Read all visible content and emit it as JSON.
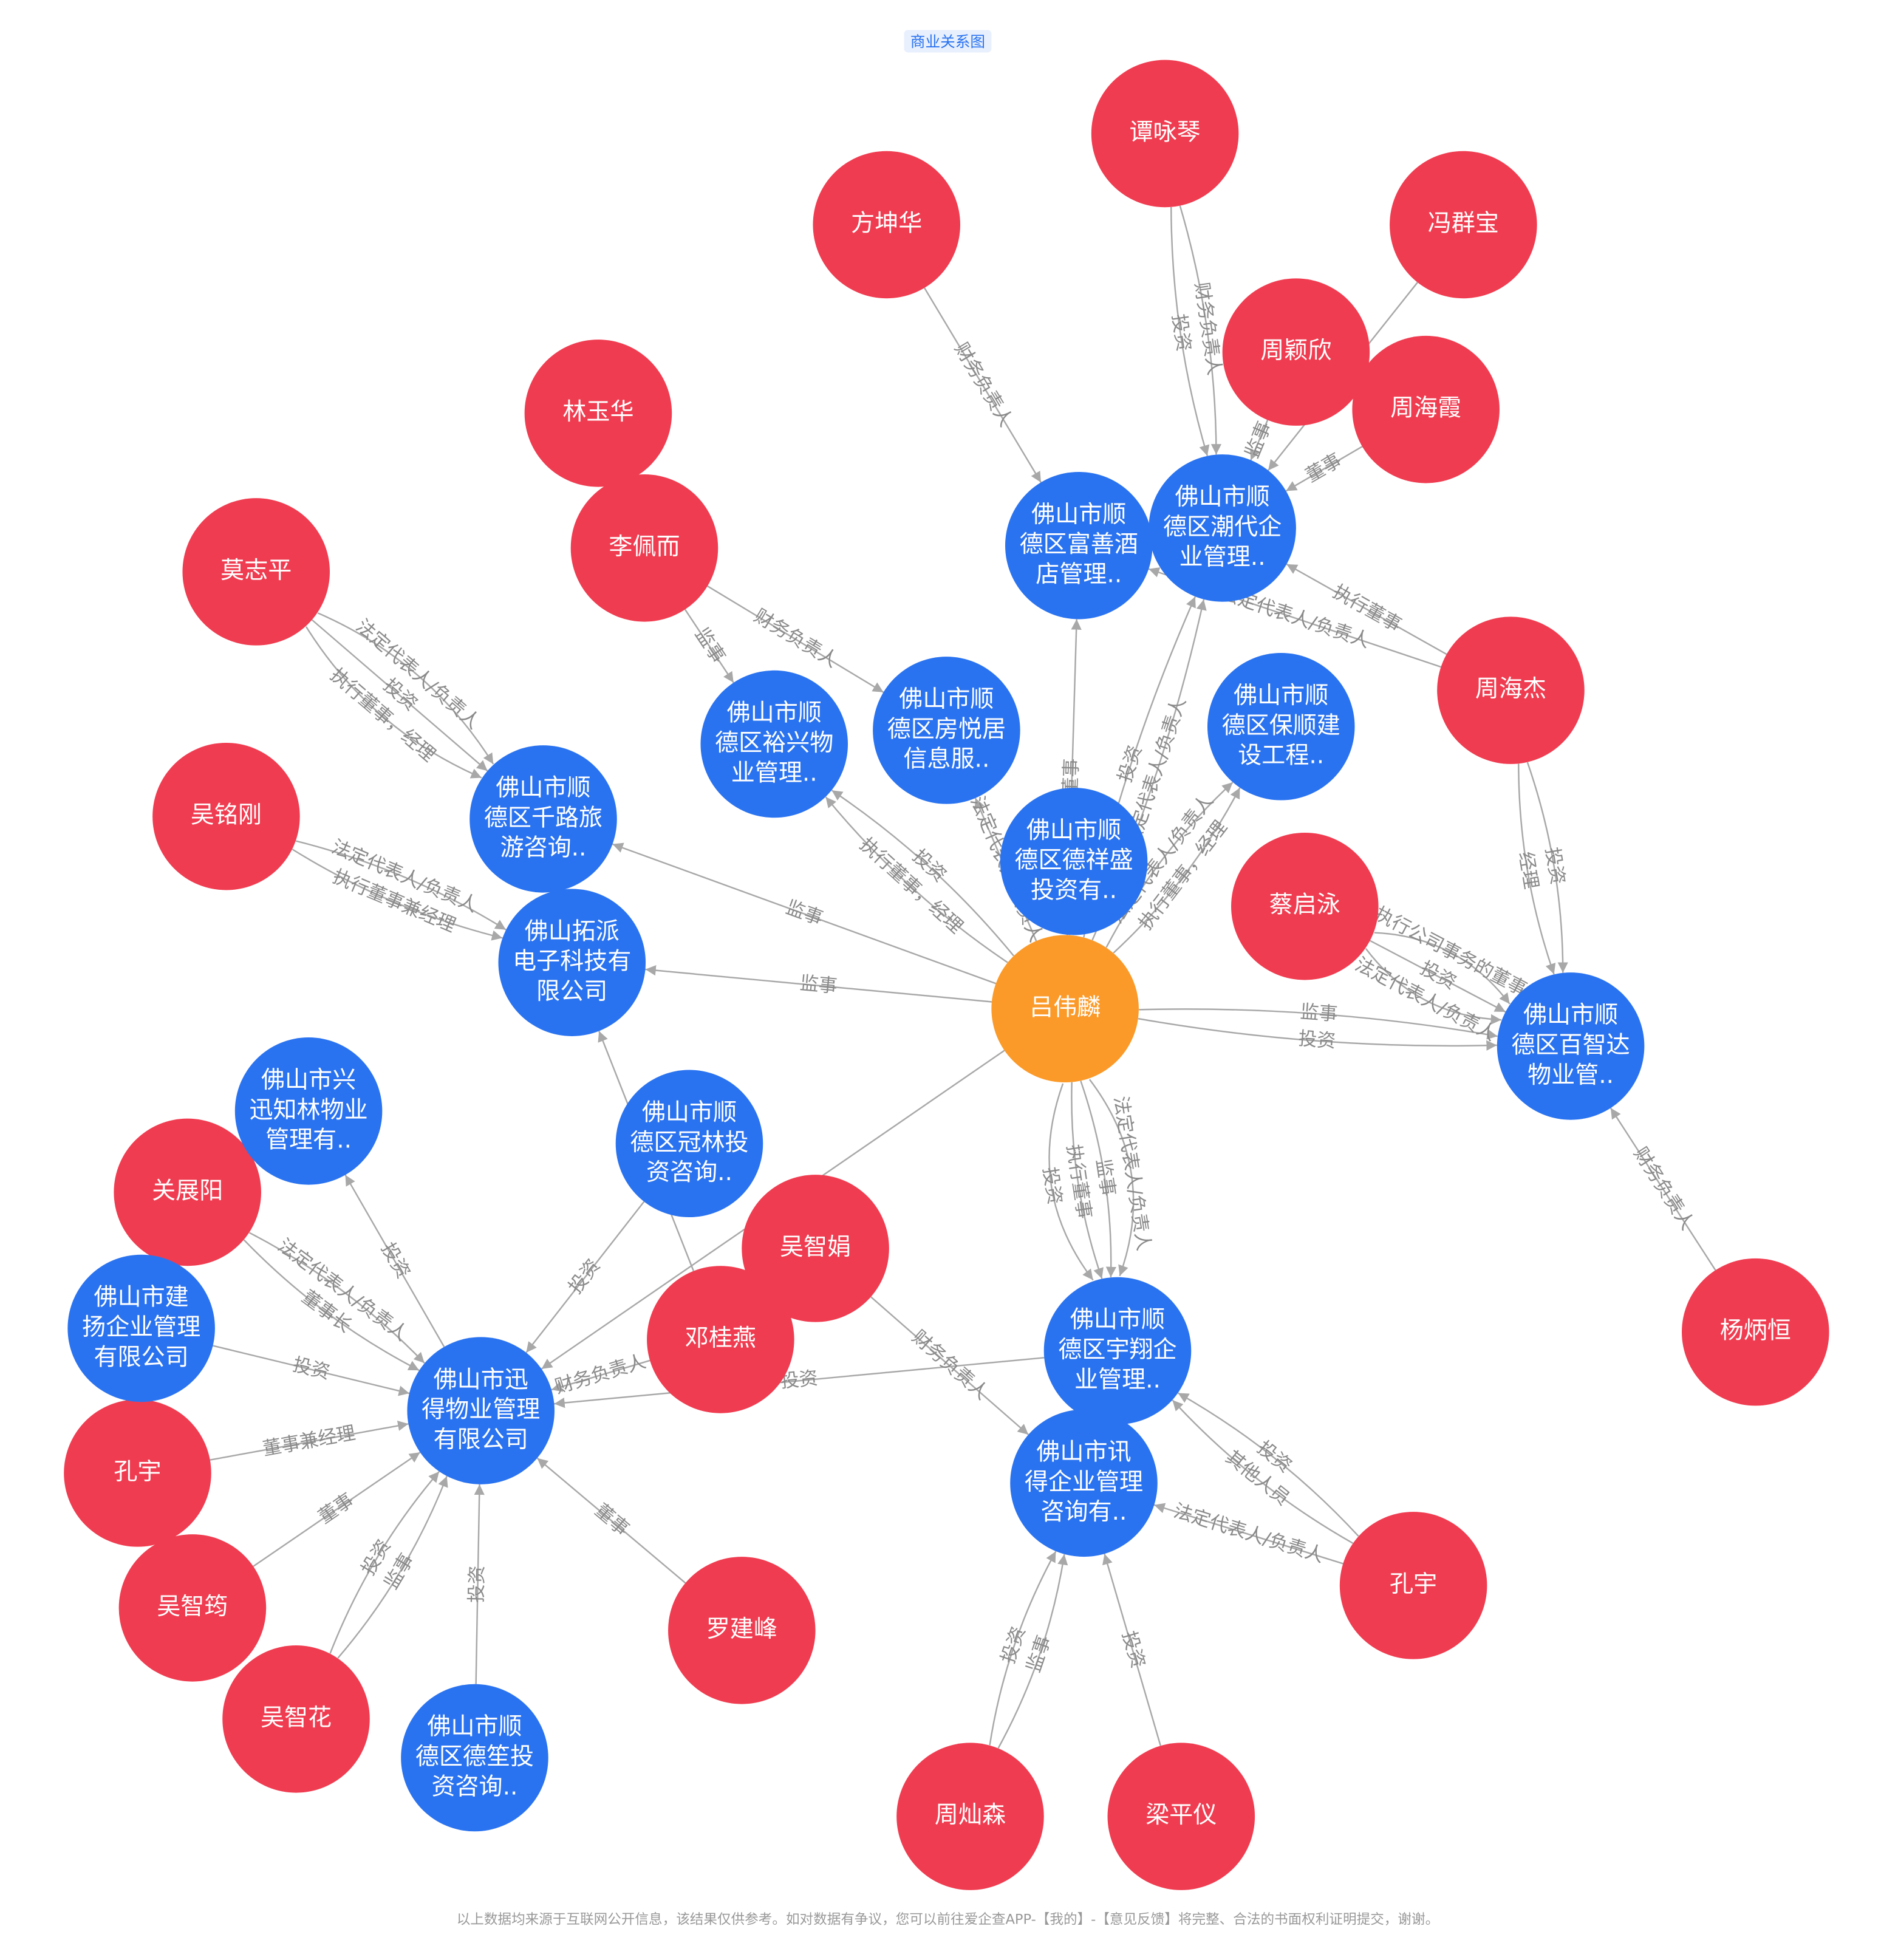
{
  "header": {
    "title": "商业关系图"
  },
  "footer": {
    "text": "以上数据均来源于互联网公开信息，该结果仅供参考。如对数据有争议，您可以前往爱企查APP-【我的】-【意见反馈】将完整、合法的书面权利证明提交，谢谢。"
  },
  "nodes": [
    {
      "label": "吕伟麟",
      "color": "#fb9a28"
    },
    {
      "label": "谭咏琴",
      "color": "#f03c50"
    },
    {
      "label": "方坤华",
      "color": "#f03c50"
    },
    {
      "label": "冯群宝",
      "color": "#f03c50"
    },
    {
      "label": "周颖欣",
      "color": "#f03c50"
    },
    {
      "label": "周海霞",
      "color": "#f03c50"
    },
    {
      "label": "林玉华",
      "color": "#f03c50"
    },
    {
      "label": "李佩而",
      "color": "#f03c50"
    },
    {
      "label": "莫志平",
      "color": "#f03c50"
    },
    {
      "label": "周海杰",
      "color": "#f03c50"
    },
    {
      "label": "吴铭刚",
      "color": "#f03c50"
    },
    {
      "label": "蔡启泳",
      "color": "#f03c50"
    },
    {
      "label": "关展阳",
      "color": "#f03c50"
    },
    {
      "label": "吴智娟",
      "color": "#f03c50"
    },
    {
      "label": "邓桂燕",
      "color": "#f03c50"
    },
    {
      "label": "杨炳恒",
      "color": "#f03c50"
    },
    {
      "label": "孔宇",
      "color": "#f03c50"
    },
    {
      "label": "孔宇",
      "color": "#f03c50"
    },
    {
      "label": "吴智筠",
      "color": "#f03c50"
    },
    {
      "label": "罗建峰",
      "color": "#f03c50"
    },
    {
      "label": "吴智花",
      "color": "#f03c50"
    },
    {
      "label": "周灿森",
      "color": "#f03c50"
    },
    {
      "label": "梁平仪",
      "color": "#f03c50"
    },
    {
      "label": "佛山市顺德区富善酒店管理..",
      "color": "#2a73f0"
    },
    {
      "label": "佛山市顺德区潮代企业管理..",
      "color": "#2a73f0"
    },
    {
      "label": "佛山市顺德区房悦居信息服..",
      "color": "#2a73f0"
    },
    {
      "label": "佛山市顺德区裕兴物业管理..",
      "color": "#2a73f0"
    },
    {
      "label": "佛山市顺德区保顺建设工程..",
      "color": "#2a73f0"
    },
    {
      "label": "佛山市顺德区千路旅游咨询..",
      "color": "#2a73f0"
    },
    {
      "label": "佛山市顺德区德祥盛投资有..",
      "color": "#2a73f0"
    },
    {
      "label": "佛山拓派电子科技有限公司",
      "color": "#2a73f0"
    },
    {
      "label": "佛山市顺德区百智达物业管..",
      "color": "#2a73f0"
    },
    {
      "label": "佛山市兴迅知林物业管理有..",
      "color": "#2a73f0"
    },
    {
      "label": "佛山市顺德区冠林投资咨询..",
      "color": "#2a73f0"
    },
    {
      "label": "佛山市建扬企业管理有限公司",
      "color": "#2a73f0"
    },
    {
      "label": "佛山市迅得物业管理有限公司",
      "color": "#2a73f0"
    },
    {
      "label": "佛山市顺德区宇翔企业管理..",
      "color": "#2a73f0"
    },
    {
      "label": "佛山市讯得企业管理咨询有..",
      "color": "#2a73f0"
    },
    {
      "label": "佛山市顺德区德笙投资咨询..",
      "color": "#2a73f0"
    }
  ],
  "edges": [
    {
      "source": 2,
      "target": 23,
      "label": "财务负责人"
    },
    {
      "source": 1,
      "target": 24,
      "label": "财务负责人"
    },
    {
      "source": 1,
      "target": 24,
      "label": "投资"
    },
    {
      "source": 4,
      "target": 24,
      "label": "监事"
    },
    {
      "source": 3,
      "target": 24,
      "label": "投资"
    },
    {
      "source": 5,
      "target": 24,
      "label": "董事"
    },
    {
      "source": 9,
      "target": 24,
      "label": "执行董事"
    },
    {
      "source": 9,
      "target": 23,
      "label": "法定代表人/负责人"
    },
    {
      "source": 7,
      "target": 25,
      "label": "财务负责人"
    },
    {
      "source": 7,
      "target": 26,
      "label": "监事"
    },
    {
      "source": 8,
      "target": 28,
      "label": "法定代表人/负责人"
    },
    {
      "source": 8,
      "target": 28,
      "label": "投资"
    },
    {
      "source": 8,
      "target": 28,
      "label": "执行董事，经理"
    },
    {
      "source": 10,
      "target": 30,
      "label": "法定代表人/负责人"
    },
    {
      "source": 10,
      "target": 30,
      "label": "执行董事兼经理"
    },
    {
      "source": 0,
      "target": 28,
      "label": "监事"
    },
    {
      "source": 0,
      "target": 30,
      "label": "监事"
    },
    {
      "source": 0,
      "target": 26,
      "label": "执行董事，经理"
    },
    {
      "source": 0,
      "target": 26,
      "label": "投资"
    },
    {
      "source": 0,
      "target": 25,
      "label": "法定代表人/负责人"
    },
    {
      "source": 0,
      "target": 29,
      "label": "投资"
    },
    {
      "source": 0,
      "target": 23,
      "label": "董事"
    },
    {
      "source": 0,
      "target": 24,
      "label": "投资"
    },
    {
      "source": 0,
      "target": 24,
      "label": "法定代表人/负责人"
    },
    {
      "source": 0,
      "target": 27,
      "label": "法定代表人/负责人"
    },
    {
      "source": 0,
      "target": 27,
      "label": "执行董事，经理"
    },
    {
      "source": 0,
      "target": 31,
      "label": "监事"
    },
    {
      "source": 0,
      "target": 31,
      "label": "投资"
    },
    {
      "source": 11,
      "target": 31,
      "label": "执行公司事务的董事"
    },
    {
      "source": 11,
      "target": 31,
      "label": "投资"
    },
    {
      "source": 11,
      "target": 31,
      "label": "法定代表人/负责人"
    },
    {
      "source": 9,
      "target": 31,
      "label": "投资"
    },
    {
      "source": 9,
      "target": 31,
      "label": "经理"
    },
    {
      "source": 15,
      "target": 31,
      "label": "财务负责人"
    },
    {
      "source": 0,
      "target": 36,
      "label": "法定代表人/负责人"
    },
    {
      "source": 0,
      "target": 36,
      "label": "监事"
    },
    {
      "source": 0,
      "target": 36,
      "label": "执行董事"
    },
    {
      "source": 0,
      "target": 36,
      "label": "投资"
    },
    {
      "source": 0,
      "target": 35,
      "label": "董事"
    },
    {
      "source": 14,
      "target": 30,
      "label": "财务负责人"
    },
    {
      "source": 33,
      "target": 35,
      "label": "投资"
    },
    {
      "source": 12,
      "target": 35,
      "label": "法定代表人/负责人"
    },
    {
      "source": 12,
      "target": 35,
      "label": "董事长"
    },
    {
      "source": 35,
      "target": 32,
      "label": "投资"
    },
    {
      "source": 34,
      "target": 35,
      "label": "投资"
    },
    {
      "source": 16,
      "target": 35,
      "label": "董事兼经理"
    },
    {
      "source": 18,
      "target": 35,
      "label": "董事"
    },
    {
      "source": 20,
      "target": 35,
      "label": "投资"
    },
    {
      "source": 20,
      "target": 35,
      "label": "监事"
    },
    {
      "source": 38,
      "target": 35,
      "label": "投资"
    },
    {
      "source": 19,
      "target": 35,
      "label": "董事"
    },
    {
      "source": 14,
      "target": 35,
      "label": "财务负责人"
    },
    {
      "source": 36,
      "target": 35,
      "label": "投资"
    },
    {
      "source": 13,
      "target": 37,
      "label": "财务负责人"
    },
    {
      "source": 17,
      "target": 36,
      "label": "其他人员"
    },
    {
      "source": 17,
      "target": 36,
      "label": "投资"
    },
    {
      "source": 17,
      "target": 37,
      "label": "法定代表人/负责人"
    },
    {
      "source": 21,
      "target": 37,
      "label": "投资"
    },
    {
      "source": 21,
      "target": 37,
      "label": "监事"
    },
    {
      "source": 22,
      "target": 37,
      "label": "投资"
    }
  ]
}
